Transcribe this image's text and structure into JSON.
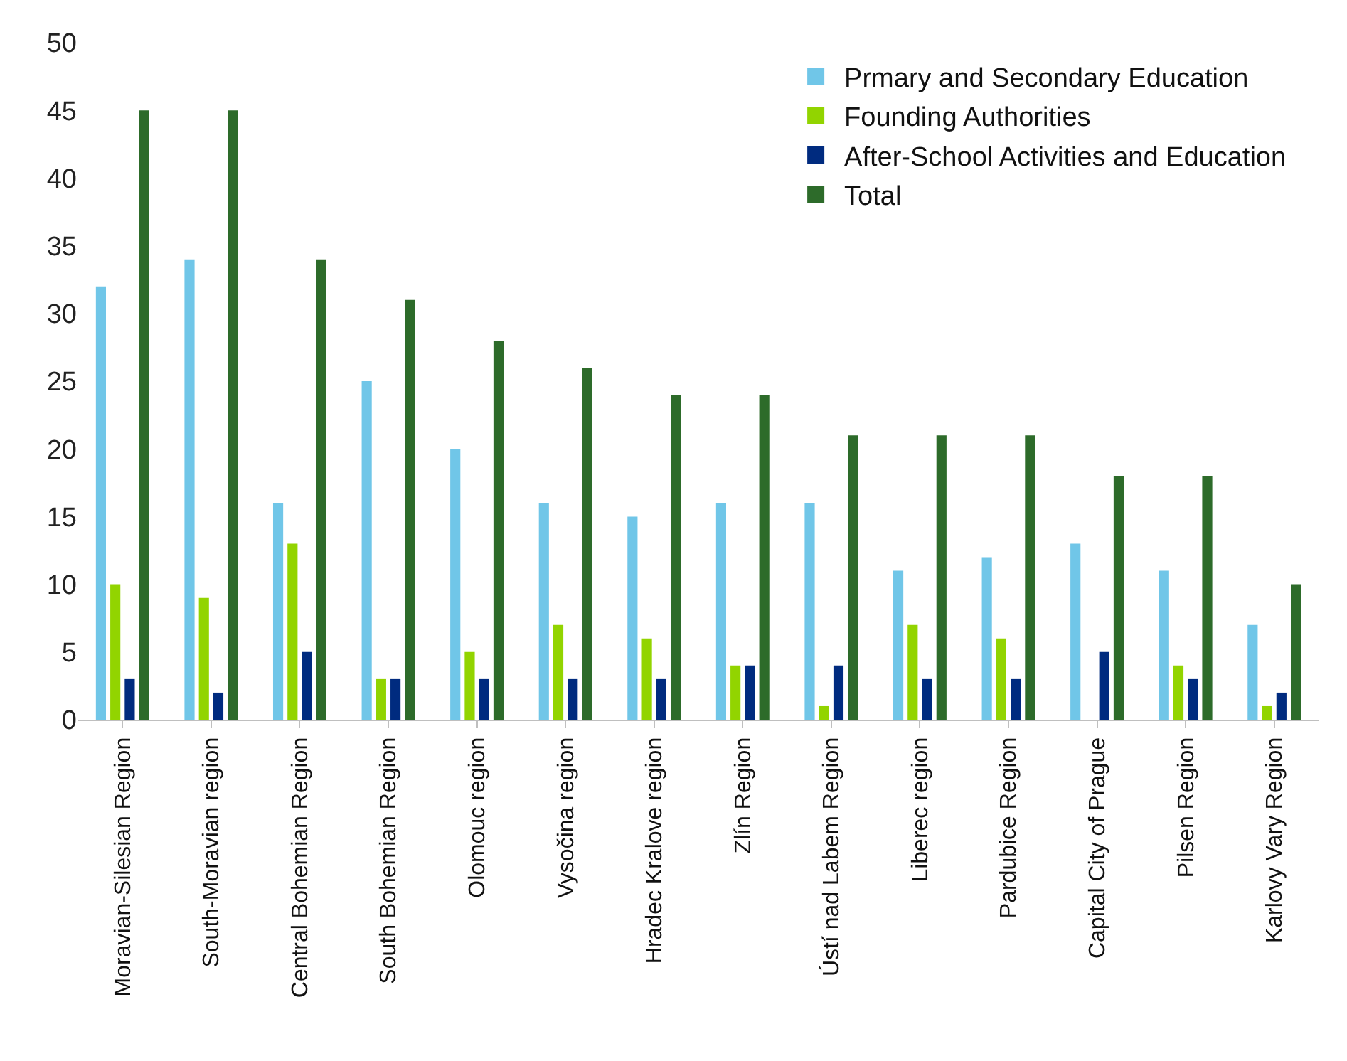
{
  "chart_data": {
    "type": "bar",
    "categories": [
      "Moravian-Silesian Region",
      "South-Moravian region",
      "Central Bohemian Region",
      "South Bohemian Region",
      "Olomouc region",
      "Vysočina region",
      "Hradec Kralove region",
      "Zlín Region",
      "Ústí nad Labem Region",
      "Liberec region",
      "Pardubice Region",
      "Capital City of Prague",
      "Pilsen Region",
      "Karlovy Vary Region"
    ],
    "series": [
      {
        "name": "Prmary and Secondary Education",
        "color": "#70c6e8",
        "values": [
          32,
          34,
          16,
          25,
          20,
          16,
          15,
          16,
          16,
          11,
          12,
          13,
          11,
          7
        ]
      },
      {
        "name": "Founding Authorities",
        "color": "#92d400",
        "values": [
          10,
          9,
          13,
          3,
          5,
          7,
          6,
          4,
          1,
          7,
          6,
          0,
          4,
          1
        ]
      },
      {
        "name": "After-School Activities and Education",
        "color": "#002b7f",
        "values": [
          3,
          2,
          5,
          3,
          3,
          3,
          3,
          4,
          4,
          3,
          3,
          5,
          3,
          2
        ]
      },
      {
        "name": "Total",
        "color": "#2d6b2a",
        "values": [
          45,
          45,
          34,
          31,
          28,
          26,
          24,
          24,
          21,
          21,
          21,
          18,
          18,
          10
        ]
      }
    ],
    "ylim": [
      0,
      50
    ],
    "yticks": [
      0,
      5,
      10,
      15,
      20,
      25,
      30,
      35,
      40,
      45,
      50
    ],
    "grid": false,
    "legend": "top right"
  }
}
